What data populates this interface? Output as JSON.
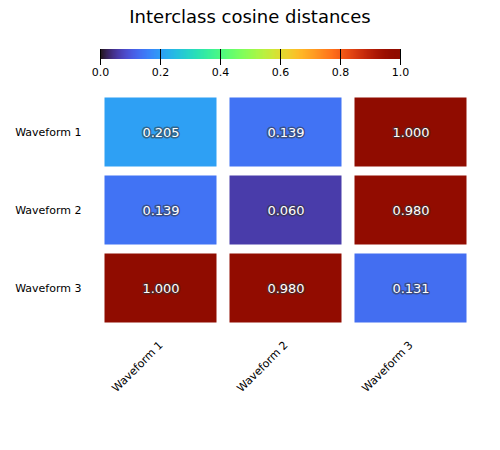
{
  "chart_data": {
    "type": "heatmap",
    "title": "Interclass cosine distances",
    "categories": [
      "Waveform 1",
      "Waveform 2",
      "Waveform 3"
    ],
    "values": [
      [
        0.205,
        0.139,
        1.0
      ],
      [
        0.139,
        0.06,
        0.98
      ],
      [
        1.0,
        0.98,
        0.131
      ]
    ],
    "data_labels": true,
    "value_labels": [
      [
        "0.205",
        "0.139",
        "1.000"
      ],
      [
        "0.139",
        "0.060",
        "0.980"
      ],
      [
        "1.000",
        "0.980",
        "0.131"
      ]
    ],
    "colorbar_range": [
      0.0,
      1.0
    ],
    "colorbar_ticks": [
      {
        "value": 0.0,
        "label": "0.0"
      },
      0.2,
      0.4,
      0.6,
      0.8,
      {
        "value": 1.0,
        "label": "1.0"
      }
    ]
  }
}
